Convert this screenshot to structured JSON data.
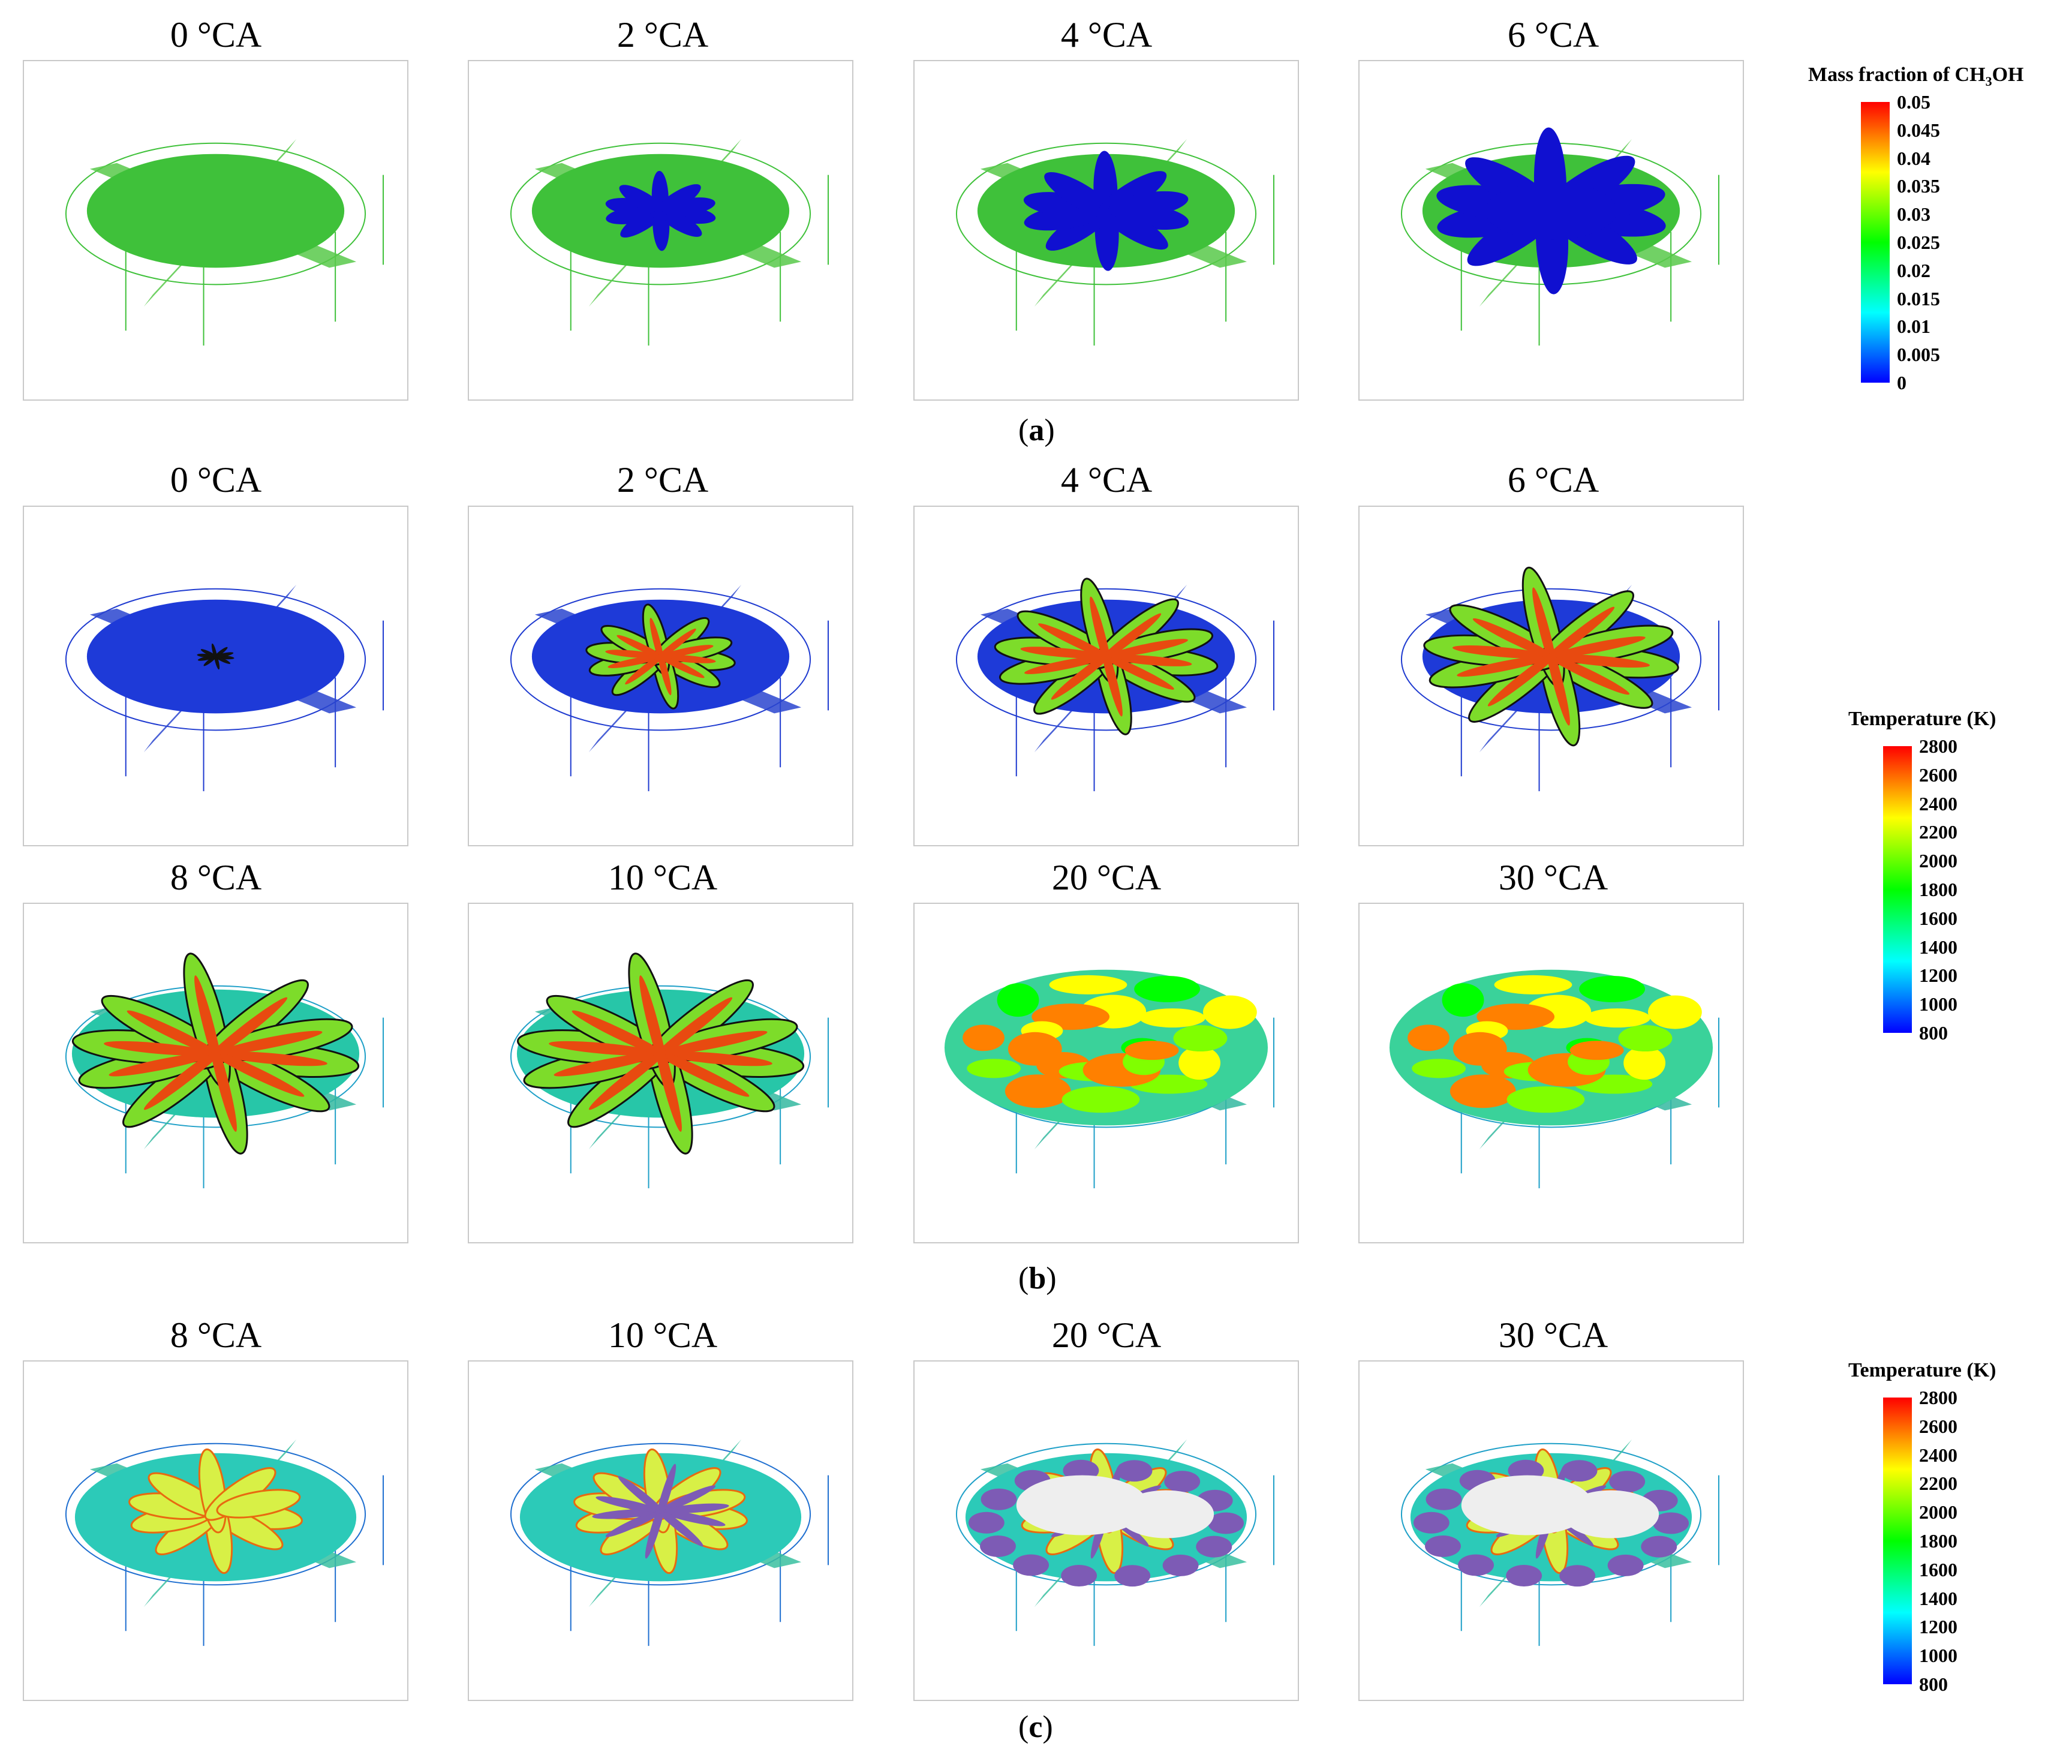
{
  "section_a": {
    "label": "a",
    "panels": [
      {
        "title": "0 °CA",
        "spot": 0
      },
      {
        "title": "2 °CA",
        "spot": 0.2
      },
      {
        "title": "4 °CA",
        "spot": 0.5
      },
      {
        "title": "6 °CA",
        "spot": 0.85
      }
    ],
    "colorbar": {
      "title_pre": "Mass fraction of CH",
      "title_sub": "3",
      "title_post": "OH",
      "ticks": [
        "0.05",
        "0.045",
        "0.04",
        "0.035",
        "0.03",
        "0.025",
        "0.02",
        "0.015",
        "0.01",
        "0.005",
        "0"
      ]
    }
  },
  "section_b": {
    "label": "b",
    "panels": [
      {
        "title": "0 °CA"
      },
      {
        "title": "2 °CA"
      },
      {
        "title": "4 °CA"
      },
      {
        "title": "6 °CA"
      },
      {
        "title": "8 °CA"
      },
      {
        "title": "10 °CA"
      },
      {
        "title": "20 °CA"
      },
      {
        "title": "30 °CA"
      }
    ],
    "colorbar": {
      "title": "Temperature (K)",
      "ticks": [
        "2800",
        "2600",
        "2400",
        "2200",
        "2000",
        "1800",
        "1600",
        "1400",
        "1200",
        "1000",
        "800"
      ]
    }
  },
  "section_c": {
    "label": "c",
    "panels": [
      {
        "title": "8 °CA"
      },
      {
        "title": "10 °CA"
      },
      {
        "title": "20 °CA"
      },
      {
        "title": "30 °CA"
      }
    ],
    "colorbar": {
      "title": "Temperature (K)",
      "ticks": [
        "2800",
        "2600",
        "2400",
        "2200",
        "2000",
        "1800",
        "1600",
        "1400",
        "1200",
        "1000",
        "800"
      ]
    }
  },
  "colors": {
    "jet": [
      "#0000ff",
      "#0080ff",
      "#00ffff",
      "#00ff80",
      "#00ff00",
      "#80ff00",
      "#ffff00",
      "#ff8000",
      "#ff0000"
    ],
    "mass_fraction_bg": "#3fc13a",
    "low_temp": "#1e3ad8",
    "iso_purple": "#7d5bb5",
    "iso_white": "#eeeeee"
  }
}
